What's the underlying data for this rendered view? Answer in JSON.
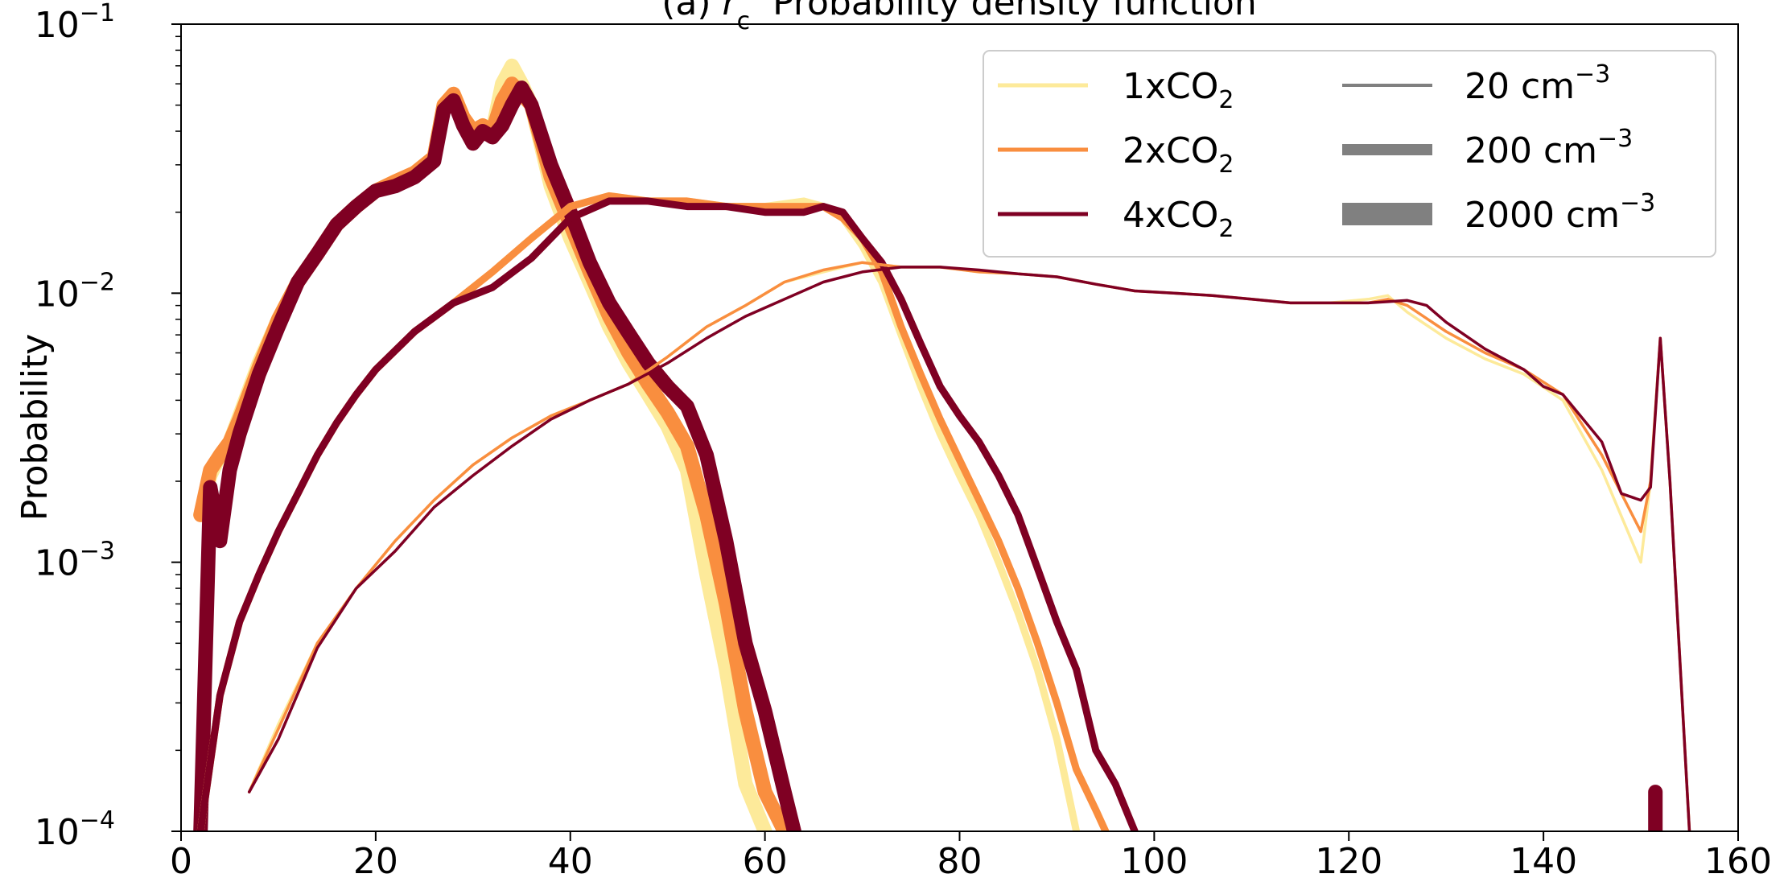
{
  "chart_data": {
    "type": "line",
    "title": "(a) r_c  Probability density function",
    "title_parts": {
      "prefix": "(a) ",
      "var": "r",
      "sub": "c",
      "suffix": "  Probability density function"
    },
    "xlabel": "",
    "ylabel": "Probability",
    "xlim": [
      0,
      160
    ],
    "ylim": [
      0.0001,
      0.1
    ],
    "yscale": "log",
    "xticks": [
      0,
      20,
      40,
      60,
      80,
      100,
      120,
      140,
      160
    ],
    "yticks": [
      {
        "value": 0.1,
        "base": "10",
        "exp": "−1"
      },
      {
        "value": 0.01,
        "base": "10",
        "exp": "−2"
      },
      {
        "value": 0.001,
        "base": "10",
        "exp": "−3"
      },
      {
        "value": 0.0001,
        "base": "10",
        "exp": "−4"
      }
    ],
    "grid": false,
    "legend": {
      "placement": "top-right",
      "scenarios": [
        {
          "prefix": "1xCO",
          "sub": "2",
          "color": "#fdea9a"
        },
        {
          "prefix": "2xCO",
          "sub": "2",
          "color": "#f98e3f"
        },
        {
          "prefix": "4xCO",
          "sub": "2",
          "color": "#7f0023"
        }
      ],
      "concentrations": [
        {
          "label": "20 cm",
          "exp": "−3",
          "width": "thin"
        },
        {
          "label": "200 cm",
          "exp": "−3",
          "width": "medium"
        },
        {
          "label": "2000 cm",
          "exp": "−3",
          "width": "thick"
        }
      ],
      "gray": "#808080"
    },
    "series": [
      {
        "scenario": "1xCO2",
        "concentration": "2000 cm-3",
        "x": [
          2,
          3,
          4,
          5,
          6,
          8,
          10,
          12,
          14,
          16,
          18,
          20,
          22,
          24,
          26,
          27,
          28,
          29,
          30,
          31,
          32,
          33,
          34,
          35,
          36,
          38,
          40,
          42,
          44,
          46,
          48,
          50,
          52,
          54,
          56,
          58,
          60
        ],
        "y": [
          0.0015,
          0.0021,
          0.0025,
          0.0028,
          0.0035,
          0.0055,
          0.008,
          0.011,
          0.014,
          0.018,
          0.021,
          0.024,
          0.026,
          0.028,
          0.032,
          0.05,
          0.055,
          0.045,
          0.04,
          0.042,
          0.04,
          0.06,
          0.07,
          0.06,
          0.05,
          0.025,
          0.016,
          0.011,
          0.0075,
          0.0055,
          0.0042,
          0.0032,
          0.0022,
          0.0009,
          0.0004,
          0.00015,
          0.0001
        ]
      },
      {
        "scenario": "2xCO2",
        "concentration": "2000 cm-3",
        "x": [
          2,
          3,
          4,
          5,
          6,
          8,
          10,
          12,
          14,
          16,
          18,
          20,
          22,
          24,
          26,
          27,
          28,
          29,
          30,
          31,
          32,
          33,
          34,
          35,
          36,
          38,
          40,
          42,
          44,
          46,
          48,
          50,
          52,
          54,
          56,
          58,
          60,
          62
        ],
        "y": [
          0.0015,
          0.0022,
          0.0025,
          0.0028,
          0.0034,
          0.0053,
          0.008,
          0.011,
          0.014,
          0.018,
          0.021,
          0.024,
          0.026,
          0.028,
          0.032,
          0.05,
          0.055,
          0.045,
          0.04,
          0.042,
          0.04,
          0.052,
          0.06,
          0.055,
          0.05,
          0.027,
          0.018,
          0.012,
          0.0082,
          0.006,
          0.0046,
          0.0036,
          0.0027,
          0.0015,
          0.0007,
          0.00028,
          0.00014,
          0.0001
        ]
      },
      {
        "scenario": "4xCO2",
        "concentration": "2000 cm-3",
        "x": [
          2,
          3,
          4,
          5,
          6,
          8,
          10,
          12,
          14,
          16,
          18,
          20,
          22,
          24,
          26,
          27,
          28,
          29,
          30,
          31,
          32,
          33,
          34,
          35,
          36,
          38,
          40,
          42,
          44,
          46,
          48,
          50,
          52,
          54,
          56,
          58,
          60,
          62,
          63
        ],
        "y": [
          0.0001,
          0.0019,
          0.0012,
          0.0022,
          0.003,
          0.005,
          0.0075,
          0.011,
          0.014,
          0.018,
          0.021,
          0.024,
          0.025,
          0.027,
          0.031,
          0.048,
          0.052,
          0.042,
          0.036,
          0.04,
          0.038,
          0.042,
          0.05,
          0.058,
          0.05,
          0.03,
          0.02,
          0.013,
          0.0092,
          0.0071,
          0.0055,
          0.0045,
          0.0038,
          0.0025,
          0.0012,
          0.0005,
          0.00028,
          0.00014,
          0.0001
        ]
      },
      {
        "scenario": "1xCO2",
        "concentration": "200 cm-3",
        "x": [
          2,
          3,
          4,
          6,
          8,
          10,
          12,
          14,
          16,
          18,
          20,
          24,
          28,
          32,
          36,
          40,
          44,
          48,
          52,
          56,
          60,
          64,
          66,
          68,
          70,
          72,
          74,
          76,
          78,
          80,
          82,
          84,
          86,
          88,
          90,
          92
        ],
        "y": [
          0.0001,
          0.00018,
          0.00032,
          0.0006,
          0.0009,
          0.0013,
          0.0018,
          0.0025,
          0.0033,
          0.0042,
          0.0052,
          0.0072,
          0.0092,
          0.012,
          0.016,
          0.021,
          0.023,
          0.022,
          0.022,
          0.021,
          0.021,
          0.022,
          0.021,
          0.019,
          0.015,
          0.011,
          0.007,
          0.0045,
          0.003,
          0.0021,
          0.0015,
          0.001,
          0.00065,
          0.0004,
          0.00022,
          0.0001
        ]
      },
      {
        "scenario": "2xCO2",
        "concentration": "200 cm-3",
        "x": [
          2,
          3,
          4,
          6,
          8,
          10,
          12,
          14,
          16,
          18,
          20,
          24,
          28,
          32,
          36,
          40,
          44,
          48,
          52,
          56,
          60,
          64,
          66,
          68,
          70,
          72,
          74,
          76,
          78,
          80,
          82,
          84,
          86,
          88,
          90,
          92,
          94,
          95
        ],
        "y": [
          0.0001,
          0.00018,
          0.00032,
          0.0006,
          0.0009,
          0.0013,
          0.0018,
          0.0025,
          0.0033,
          0.0042,
          0.0052,
          0.0072,
          0.0092,
          0.012,
          0.016,
          0.021,
          0.023,
          0.022,
          0.022,
          0.021,
          0.021,
          0.021,
          0.021,
          0.019,
          0.016,
          0.012,
          0.0075,
          0.005,
          0.0034,
          0.0024,
          0.0017,
          0.0012,
          0.0008,
          0.0005,
          0.0003,
          0.00017,
          0.00012,
          0.0001
        ]
      },
      {
        "scenario": "4xCO2",
        "concentration": "200 cm-3",
        "x": [
          2,
          3,
          4,
          6,
          8,
          10,
          12,
          14,
          16,
          18,
          20,
          24,
          28,
          32,
          36,
          40,
          44,
          48,
          52,
          56,
          60,
          64,
          66,
          68,
          70,
          72,
          74,
          76,
          78,
          80,
          82,
          84,
          86,
          88,
          90,
          92,
          94,
          96,
          98
        ],
        "y": [
          0.0001,
          0.00018,
          0.00032,
          0.0006,
          0.0009,
          0.0013,
          0.0018,
          0.0025,
          0.0033,
          0.0042,
          0.0052,
          0.0072,
          0.0092,
          0.0105,
          0.0135,
          0.019,
          0.022,
          0.022,
          0.021,
          0.021,
          0.02,
          0.02,
          0.021,
          0.02,
          0.016,
          0.013,
          0.0095,
          0.0065,
          0.0045,
          0.0035,
          0.0028,
          0.0021,
          0.0015,
          0.00095,
          0.0006,
          0.0004,
          0.0002,
          0.00015,
          0.0001
        ]
      },
      {
        "scenario": "1xCO2",
        "concentration": "20 cm-3",
        "x": [
          7,
          10,
          14,
          18,
          22,
          26,
          30,
          34,
          38,
          42,
          46,
          50,
          54,
          58,
          62,
          66,
          70,
          74,
          78,
          82,
          86,
          90,
          94,
          98,
          102,
          106,
          110,
          114,
          118,
          122,
          124,
          126,
          130,
          134,
          138,
          142,
          146,
          150,
          151,
          152,
          153,
          155
        ],
        "y": [
          0.00014,
          0.00025,
          0.0005,
          0.0008,
          0.0012,
          0.0017,
          0.0023,
          0.0029,
          0.0035,
          0.004,
          0.0046,
          0.0058,
          0.0075,
          0.009,
          0.011,
          0.012,
          0.013,
          0.0125,
          0.0125,
          0.012,
          0.0118,
          0.0115,
          0.0108,
          0.0102,
          0.01,
          0.0098,
          0.0095,
          0.0092,
          0.0092,
          0.0095,
          0.0098,
          0.0085,
          0.0068,
          0.0057,
          0.005,
          0.004,
          0.0022,
          0.001,
          0.002,
          0.0068,
          0.002,
          0.0001
        ]
      },
      {
        "scenario": "2xCO2",
        "concentration": "20 cm-3",
        "x": [
          7,
          10,
          14,
          18,
          22,
          26,
          30,
          34,
          38,
          42,
          46,
          50,
          54,
          58,
          62,
          66,
          70,
          74,
          78,
          82,
          86,
          90,
          94,
          98,
          102,
          106,
          110,
          114,
          118,
          122,
          124,
          126,
          130,
          134,
          138,
          142,
          146,
          150,
          151,
          152,
          153,
          155
        ],
        "y": [
          0.00014,
          0.00024,
          0.0005,
          0.0008,
          0.0012,
          0.0017,
          0.0023,
          0.0029,
          0.0035,
          0.004,
          0.0046,
          0.0058,
          0.0075,
          0.009,
          0.011,
          0.0122,
          0.013,
          0.0125,
          0.0125,
          0.012,
          0.0118,
          0.0115,
          0.0108,
          0.0102,
          0.01,
          0.0098,
          0.0095,
          0.0092,
          0.0092,
          0.0092,
          0.0095,
          0.009,
          0.0072,
          0.006,
          0.0052,
          0.0042,
          0.0025,
          0.0013,
          0.002,
          0.0068,
          0.002,
          0.0001
        ]
      },
      {
        "scenario": "4xCO2",
        "concentration": "20 cm-3",
        "x": [
          7,
          10,
          14,
          18,
          22,
          26,
          30,
          34,
          38,
          42,
          46,
          50,
          54,
          58,
          62,
          66,
          70,
          74,
          78,
          82,
          86,
          90,
          94,
          98,
          102,
          106,
          110,
          114,
          118,
          122,
          124,
          126,
          128,
          130,
          134,
          138,
          140,
          142,
          146,
          148,
          150,
          151,
          152,
          153,
          155
        ],
        "y": [
          0.00014,
          0.00022,
          0.00048,
          0.0008,
          0.0011,
          0.0016,
          0.0021,
          0.0027,
          0.0034,
          0.004,
          0.0046,
          0.0055,
          0.0068,
          0.0082,
          0.0095,
          0.011,
          0.012,
          0.0125,
          0.0125,
          0.0122,
          0.0118,
          0.0115,
          0.0108,
          0.0102,
          0.01,
          0.0098,
          0.0095,
          0.0092,
          0.0092,
          0.0092,
          0.0093,
          0.0094,
          0.009,
          0.0078,
          0.0062,
          0.0052,
          0.0045,
          0.0042,
          0.0028,
          0.0018,
          0.0017,
          0.0019,
          0.0068,
          0.002,
          0.0001
        ]
      },
      {
        "scenario": "4xCO2",
        "concentration": "2000 cm-3",
        "x": [
          151.5,
          151.5
        ],
        "y": [
          0.0001,
          0.00014
        ]
      }
    ]
  }
}
